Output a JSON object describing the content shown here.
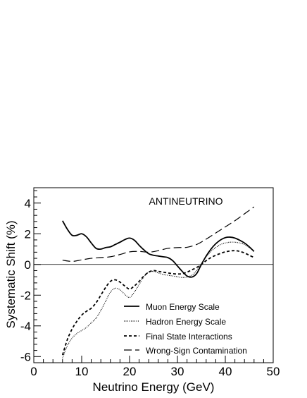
{
  "chart_data": {
    "type": "line",
    "title": "ANTINEUTRINO",
    "xlabel": "Neutrino Energy (GeV)",
    "ylabel": "Systematic Shift (%)",
    "xlim": [
      0,
      50
    ],
    "ylim": [
      -6.4,
      5.0
    ],
    "xticks": [
      0,
      10,
      20,
      30,
      40,
      50
    ],
    "yticks": [
      -6,
      -4,
      -2,
      0,
      2,
      4
    ],
    "zero_line": true,
    "grid": false,
    "legend_position": "bottom-right",
    "series": [
      {
        "name": "Muon Energy Scale",
        "style": "solid",
        "color": "#000000",
        "x": [
          6,
          7,
          8,
          9,
          10,
          11,
          12,
          13,
          14,
          15,
          16,
          17,
          18,
          19,
          20,
          21,
          22,
          23,
          24,
          25,
          26,
          27,
          28,
          29,
          30,
          31,
          32,
          33,
          34,
          35,
          36,
          37,
          38,
          39,
          40,
          41,
          42,
          43,
          44,
          45,
          46
        ],
        "values": [
          2.85,
          2.3,
          1.9,
          1.9,
          2.0,
          1.8,
          1.4,
          1.05,
          1.0,
          1.1,
          1.15,
          1.3,
          1.45,
          1.62,
          1.72,
          1.58,
          1.25,
          0.95,
          0.7,
          0.6,
          0.55,
          0.5,
          0.45,
          0.25,
          -0.1,
          -0.45,
          -0.75,
          -0.82,
          -0.6,
          0.0,
          0.55,
          1.0,
          1.35,
          1.6,
          1.75,
          1.78,
          1.72,
          1.58,
          1.4,
          1.15,
          0.85
        ]
      },
      {
        "name": "Hadron Energy Scale",
        "style": "dotted",
        "color": "#000000",
        "x": [
          6,
          7,
          8,
          9,
          10,
          11,
          12,
          13,
          14,
          15,
          16,
          17,
          18,
          19,
          20,
          21,
          22,
          23,
          24,
          25,
          26,
          27,
          28,
          29,
          30,
          31,
          32,
          33,
          34,
          35,
          36,
          37,
          38,
          39,
          40,
          41,
          42,
          43,
          44,
          45,
          46
        ],
        "values": [
          -6.1,
          -5.3,
          -4.8,
          -4.5,
          -4.3,
          -4.1,
          -3.8,
          -3.5,
          -3.0,
          -2.4,
          -1.8,
          -1.55,
          -1.65,
          -1.95,
          -2.15,
          -1.8,
          -1.3,
          -0.8,
          -0.5,
          -0.45,
          -0.55,
          -0.65,
          -0.7,
          -0.75,
          -0.8,
          -0.85,
          -0.82,
          -0.7,
          -0.4,
          0.05,
          0.5,
          0.85,
          1.1,
          1.3,
          1.4,
          1.45,
          1.45,
          1.4,
          1.3,
          1.1,
          0.85
        ]
      },
      {
        "name": "Final State Interactions",
        "style": "dashed",
        "color": "#000000",
        "x": [
          6,
          7,
          8,
          9,
          10,
          11,
          12,
          13,
          14,
          15,
          16,
          17,
          18,
          19,
          20,
          21,
          22,
          23,
          24,
          25,
          26,
          27,
          28,
          29,
          30,
          31,
          32,
          33,
          34,
          35,
          36,
          37,
          38,
          39,
          40,
          41,
          42,
          43,
          44,
          45,
          46
        ],
        "values": [
          -5.9,
          -4.9,
          -4.2,
          -3.7,
          -3.3,
          -3.05,
          -2.85,
          -2.5,
          -2.0,
          -1.5,
          -1.1,
          -1.0,
          -1.15,
          -1.4,
          -1.6,
          -1.4,
          -1.1,
          -0.75,
          -0.5,
          -0.4,
          -0.45,
          -0.5,
          -0.55,
          -0.6,
          -0.62,
          -0.6,
          -0.5,
          -0.35,
          -0.2,
          0.0,
          0.25,
          0.45,
          0.6,
          0.72,
          0.82,
          0.88,
          0.9,
          0.85,
          0.75,
          0.6,
          0.45
        ]
      },
      {
        "name": "Wrong-Sign Contamination",
        "style": "longdash",
        "color": "#000000",
        "x": [
          6,
          8,
          10,
          12,
          14,
          16,
          18,
          20,
          22,
          24,
          26,
          28,
          30,
          32,
          34,
          36,
          38,
          40,
          42,
          44,
          46
        ],
        "values": [
          0.28,
          0.2,
          0.3,
          0.4,
          0.45,
          0.5,
          0.65,
          0.82,
          0.85,
          0.8,
          0.9,
          1.05,
          1.1,
          1.12,
          1.3,
          1.65,
          2.05,
          2.45,
          2.85,
          3.3,
          3.75
        ]
      }
    ]
  }
}
